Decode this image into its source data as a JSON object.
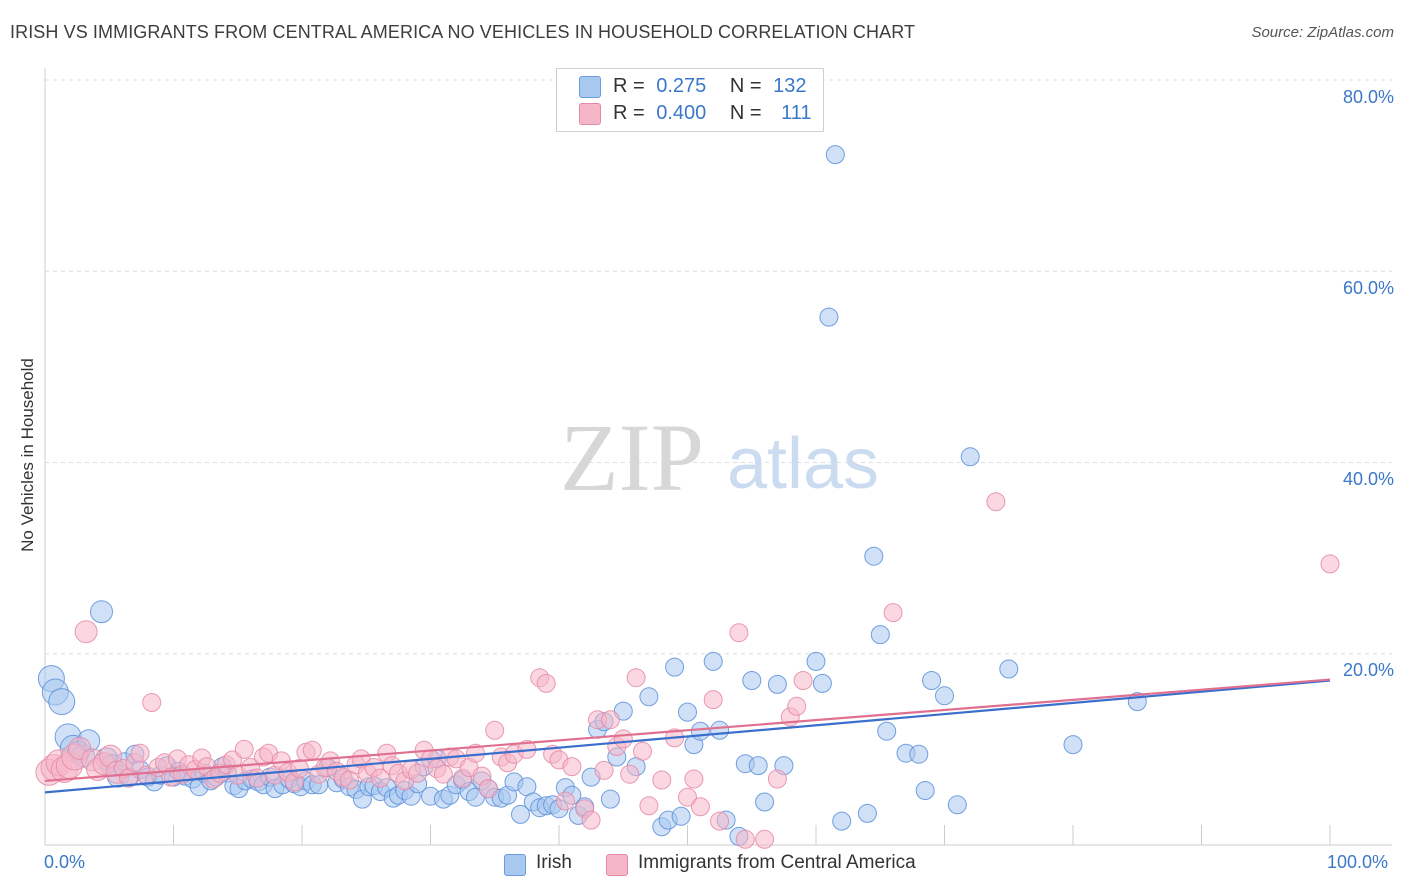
{
  "header": {
    "title": "IRISH VS IMMIGRANTS FROM CENTRAL AMERICA NO VEHICLES IN HOUSEHOLD CORRELATION CHART",
    "source": "Source: ZipAtlas.com"
  },
  "watermark": {
    "zip": "ZIP",
    "atlas": "atlas"
  },
  "legend_top": {
    "rows": [
      {
        "r_label": "R =",
        "r_value": "0.275",
        "n_label": "N =",
        "n_value": "132",
        "color": "#a9c8f0"
      },
      {
        "r_label": "R =",
        "r_value": "0.400",
        "n_label": "N =",
        "n_value": "111",
        "color": "#f5b7c8"
      }
    ]
  },
  "legend_bottom": {
    "items": [
      {
        "label": "Irish",
        "color": "#a9c8f0"
      },
      {
        "label": "Immigrants from Central America",
        "color": "#f5b7c8"
      }
    ]
  },
  "chart_data": {
    "type": "scatter",
    "title": "IRISH VS IMMIGRANTS FROM CENTRAL AMERICA NO VEHICLES IN HOUSEHOLD CORRELATION CHART",
    "ylabel": "No Vehicles in Household",
    "xlabel": "",
    "xlim": [
      0,
      100
    ],
    "ylim": [
      0,
      80
    ],
    "y_ticks": [
      "20.0%",
      "40.0%",
      "60.0%",
      "80.0%"
    ],
    "y_tick_values": [
      20,
      40,
      60,
      80
    ],
    "x_tick_labels": [
      "0.0%",
      "100.0%"
    ],
    "grid": "horizontal dashed",
    "legend_position": "top-center",
    "series": [
      {
        "name": "Irish",
        "color": "#5b8fd9",
        "fill": "#a9c8f0",
        "trend": {
          "x": [
            0,
            100
          ],
          "y": [
            5.5,
            17.2
          ]
        },
        "points": [
          [
            0.5,
            17.4
          ],
          [
            0.8,
            16.0
          ],
          [
            1.3,
            15.0
          ],
          [
            1.8,
            11.3
          ],
          [
            2.2,
            10.1
          ],
          [
            2.6,
            9.7
          ],
          [
            3.0,
            9.3
          ],
          [
            3.4,
            10.9
          ],
          [
            4.4,
            24.4
          ],
          [
            4.8,
            9.0
          ],
          [
            5.2,
            8.3
          ],
          [
            5.7,
            7.2
          ],
          [
            6.2,
            8.7
          ],
          [
            6.6,
            7.1
          ],
          [
            7.0,
            9.5
          ],
          [
            7.4,
            7.9
          ],
          [
            8.0,
            7.1
          ],
          [
            8.5,
            6.6
          ],
          [
            9.0,
            7.3
          ],
          [
            9.5,
            8.3
          ],
          [
            10.0,
            7.1
          ],
          [
            10.4,
            7.7
          ],
          [
            10.9,
            7.2
          ],
          [
            11.5,
            6.9
          ],
          [
            12.0,
            6.1
          ],
          [
            12.4,
            7.5
          ],
          [
            12.9,
            6.7
          ],
          [
            13.3,
            7.1
          ],
          [
            13.8,
            8.2
          ],
          [
            14.2,
            7.5
          ],
          [
            14.7,
            6.2
          ],
          [
            15.1,
            5.9
          ],
          [
            15.6,
            6.7
          ],
          [
            16.1,
            6.9
          ],
          [
            16.6,
            6.6
          ],
          [
            17.0,
            6.3
          ],
          [
            17.5,
            7.1
          ],
          [
            17.9,
            5.9
          ],
          [
            18.5,
            6.3
          ],
          [
            19.0,
            6.9
          ],
          [
            19.4,
            6.4
          ],
          [
            19.9,
            6.1
          ],
          [
            20.3,
            6.7
          ],
          [
            20.8,
            6.3
          ],
          [
            21.3,
            6.3
          ],
          [
            22.0,
            8.1
          ],
          [
            22.7,
            6.5
          ],
          [
            23.2,
            6.9
          ],
          [
            23.7,
            6.1
          ],
          [
            24.2,
            5.8
          ],
          [
            24.7,
            4.8
          ],
          [
            25.2,
            6.1
          ],
          [
            25.6,
            6.2
          ],
          [
            26.1,
            5.6
          ],
          [
            26.6,
            6.0
          ],
          [
            27.1,
            4.9
          ],
          [
            27.5,
            5.2
          ],
          [
            28.0,
            5.7
          ],
          [
            28.5,
            5.1
          ],
          [
            29.0,
            6.4
          ],
          [
            29.5,
            8.2
          ],
          [
            30.0,
            5.1
          ],
          [
            30.5,
            9.0
          ],
          [
            31.0,
            4.8
          ],
          [
            31.5,
            5.2
          ],
          [
            32.0,
            6.3
          ],
          [
            32.5,
            6.8
          ],
          [
            33.0,
            5.6
          ],
          [
            33.5,
            5.0
          ],
          [
            34.0,
            6.7
          ],
          [
            34.5,
            5.9
          ],
          [
            35.0,
            5.0
          ],
          [
            35.5,
            4.9
          ],
          [
            36.0,
            5.2
          ],
          [
            36.5,
            6.6
          ],
          [
            37.0,
            3.2
          ],
          [
            37.5,
            6.1
          ],
          [
            38.0,
            4.5
          ],
          [
            38.5,
            3.9
          ],
          [
            39.0,
            4.1
          ],
          [
            39.5,
            4.2
          ],
          [
            40.0,
            3.8
          ],
          [
            40.5,
            6.0
          ],
          [
            41.0,
            5.2
          ],
          [
            41.5,
            3.1
          ],
          [
            42.0,
            4.0
          ],
          [
            42.5,
            7.1
          ],
          [
            43.0,
            12.1
          ],
          [
            43.5,
            12.9
          ],
          [
            44.0,
            4.8
          ],
          [
            44.5,
            9.2
          ],
          [
            45.0,
            14.0
          ],
          [
            46.0,
            8.2
          ],
          [
            47.0,
            15.5
          ],
          [
            48.0,
            1.9
          ],
          [
            48.5,
            2.6
          ],
          [
            49.0,
            18.6
          ],
          [
            49.5,
            3.0
          ],
          [
            50.0,
            13.9
          ],
          [
            50.5,
            10.5
          ],
          [
            51.0,
            11.9
          ],
          [
            52.0,
            19.2
          ],
          [
            52.5,
            12.0
          ],
          [
            53.0,
            2.6
          ],
          [
            54.0,
            0.9
          ],
          [
            54.5,
            8.5
          ],
          [
            55.0,
            17.2
          ],
          [
            55.5,
            8.3
          ],
          [
            56.0,
            4.5
          ],
          [
            57.0,
            16.8
          ],
          [
            57.5,
            8.3
          ],
          [
            60.0,
            19.2
          ],
          [
            60.5,
            16.9
          ],
          [
            61.0,
            55.2
          ],
          [
            61.5,
            72.2
          ],
          [
            62.0,
            2.5
          ],
          [
            64.0,
            3.3
          ],
          [
            64.5,
            30.2
          ],
          [
            65.0,
            22.0
          ],
          [
            65.5,
            11.9
          ],
          [
            67.0,
            9.6
          ],
          [
            68.0,
            9.5
          ],
          [
            68.5,
            5.7
          ],
          [
            69.0,
            17.2
          ],
          [
            70.0,
            15.6
          ],
          [
            71.0,
            4.2
          ],
          [
            72.0,
            40.6
          ],
          [
            75.0,
            18.4
          ],
          [
            80.0,
            10.5
          ],
          [
            85.0,
            15.0
          ]
        ]
      },
      {
        "name": "Immigrants from Central America",
        "color": "#e58aa6",
        "fill": "#f5b7c8",
        "trend": {
          "x": [
            0,
            100
          ],
          "y": [
            6.7,
            17.3
          ]
        },
        "points": [
          [
            0.3,
            7.6
          ],
          [
            0.7,
            8.1
          ],
          [
            1.1,
            8.6
          ],
          [
            1.5,
            7.9
          ],
          [
            1.9,
            8.3
          ],
          [
            2.3,
            9.2
          ],
          [
            2.7,
            10.1
          ],
          [
            3.2,
            22.3
          ],
          [
            3.7,
            8.9
          ],
          [
            4.1,
            7.9
          ],
          [
            4.6,
            8.5
          ],
          [
            5.1,
            9.3
          ],
          [
            5.6,
            7.6
          ],
          [
            6.1,
            8.0
          ],
          [
            6.5,
            7.0
          ],
          [
            7.0,
            8.6
          ],
          [
            7.4,
            9.6
          ],
          [
            7.9,
            7.3
          ],
          [
            8.3,
            14.9
          ],
          [
            8.8,
            8.1
          ],
          [
            9.3,
            8.6
          ],
          [
            9.8,
            7.1
          ],
          [
            10.3,
            9.0
          ],
          [
            10.7,
            7.4
          ],
          [
            11.2,
            8.4
          ],
          [
            11.7,
            7.9
          ],
          [
            12.2,
            9.1
          ],
          [
            12.6,
            8.2
          ],
          [
            13.1,
            6.9
          ],
          [
            13.6,
            7.5
          ],
          [
            14.1,
            8.4
          ],
          [
            14.6,
            8.9
          ],
          [
            15.0,
            7.3
          ],
          [
            15.5,
            10.0
          ],
          [
            16.0,
            8.1
          ],
          [
            16.5,
            7.0
          ],
          [
            17.0,
            9.2
          ],
          [
            17.4,
            9.6
          ],
          [
            17.9,
            7.3
          ],
          [
            18.4,
            8.8
          ],
          [
            18.9,
            7.6
          ],
          [
            19.4,
            6.6
          ],
          [
            19.8,
            8.0
          ],
          [
            20.3,
            9.7
          ],
          [
            20.8,
            9.9
          ],
          [
            21.3,
            7.4
          ],
          [
            21.8,
            8.1
          ],
          [
            22.2,
            8.8
          ],
          [
            22.7,
            7.7
          ],
          [
            23.2,
            7.1
          ],
          [
            23.7,
            6.8
          ],
          [
            24.2,
            8.4
          ],
          [
            24.6,
            9.0
          ],
          [
            25.1,
            7.5
          ],
          [
            25.6,
            8.1
          ],
          [
            26.1,
            7.0
          ],
          [
            26.6,
            9.6
          ],
          [
            27.0,
            8.3
          ],
          [
            27.5,
            7.5
          ],
          [
            28.0,
            6.7
          ],
          [
            28.5,
            7.9
          ],
          [
            29.0,
            7.5
          ],
          [
            29.5,
            9.9
          ],
          [
            30.0,
            9.0
          ],
          [
            30.5,
            8.0
          ],
          [
            31.0,
            7.4
          ],
          [
            31.5,
            9.2
          ],
          [
            32.0,
            9.0
          ],
          [
            32.5,
            7.0
          ],
          [
            33.0,
            8.1
          ],
          [
            33.5,
            9.6
          ],
          [
            34.0,
            7.2
          ],
          [
            34.5,
            5.9
          ],
          [
            35.0,
            12.0
          ],
          [
            35.5,
            9.2
          ],
          [
            36.0,
            8.6
          ],
          [
            36.5,
            9.5
          ],
          [
            37.5,
            10.0
          ],
          [
            38.5,
            17.5
          ],
          [
            39.0,
            16.9
          ],
          [
            39.5,
            9.5
          ],
          [
            40.0,
            8.9
          ],
          [
            40.5,
            4.6
          ],
          [
            41.0,
            8.2
          ],
          [
            42.0,
            3.8
          ],
          [
            42.5,
            2.6
          ],
          [
            43.0,
            13.1
          ],
          [
            43.5,
            7.8
          ],
          [
            44.0,
            13.1
          ],
          [
            44.5,
            10.3
          ],
          [
            45.0,
            11.1
          ],
          [
            45.5,
            7.4
          ],
          [
            46.0,
            17.5
          ],
          [
            46.5,
            9.8
          ],
          [
            47.0,
            4.1
          ],
          [
            48.0,
            6.8
          ],
          [
            49.0,
            11.2
          ],
          [
            50.0,
            5.0
          ],
          [
            50.5,
            6.9
          ],
          [
            51.0,
            4.0
          ],
          [
            52.0,
            15.2
          ],
          [
            52.5,
            2.5
          ],
          [
            54.0,
            22.2
          ],
          [
            54.5,
            0.6
          ],
          [
            56.0,
            0.6
          ],
          [
            57.0,
            6.9
          ],
          [
            58.0,
            13.4
          ],
          [
            58.5,
            14.5
          ],
          [
            59.0,
            17.2
          ],
          [
            66.0,
            24.3
          ],
          [
            74.0,
            35.9
          ],
          [
            100.0,
            29.4
          ]
        ]
      }
    ]
  }
}
